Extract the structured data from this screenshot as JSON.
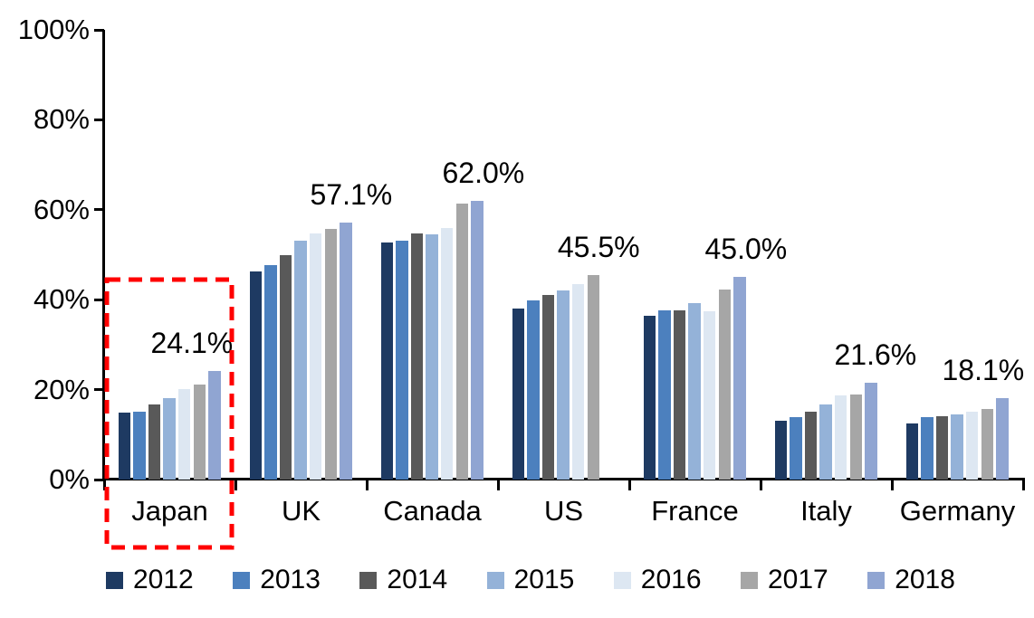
{
  "chart_data": {
    "type": "bar",
    "title": "",
    "xlabel": "",
    "ylabel": "",
    "ylim": [
      0,
      100
    ],
    "yticks": [
      "0%",
      "20%",
      "40%",
      "60%",
      "80%",
      "100%"
    ],
    "ytick_values": [
      0,
      20,
      40,
      60,
      80,
      100
    ],
    "grid": "off",
    "legend_position": "bottom",
    "categories": [
      "Japan",
      "UK",
      "Canada",
      "US",
      "France",
      "Italy",
      "Germany"
    ],
    "series": [
      {
        "name": "2012",
        "color": "#1E3A62",
        "values": [
          14.9,
          46.2,
          52.7,
          38.0,
          36.5,
          13.0,
          12.4
        ]
      },
      {
        "name": "2013",
        "color": "#4C80BE",
        "values": [
          15.1,
          47.7,
          53.2,
          39.8,
          37.7,
          13.9,
          13.8
        ]
      },
      {
        "name": "2014",
        "color": "#595959",
        "values": [
          16.6,
          49.9,
          54.7,
          41.0,
          37.6,
          15.0,
          14.1
        ]
      },
      {
        "name": "2015",
        "color": "#94B2D8",
        "values": [
          18.1,
          53.2,
          54.5,
          42.0,
          39.3,
          16.7,
          14.5
        ]
      },
      {
        "name": "2016",
        "color": "#DDE7F2",
        "values": [
          20.2,
          54.8,
          56.0,
          43.4,
          37.5,
          18.7,
          15.1
        ]
      },
      {
        "name": "2017",
        "color": "#A6A6A6",
        "values": [
          21.1,
          55.8,
          61.4,
          45.5,
          42.3,
          18.9,
          15.6
        ]
      },
      {
        "name": "2018",
        "color": "#90A5D2",
        "values": [
          24.1,
          57.1,
          62.0,
          null,
          45.0,
          21.6,
          18.1
        ]
      }
    ],
    "data_labels": [
      "24.1%",
      "57.1%",
      "62.0%",
      "45.5%",
      "45.0%",
      "21.6%",
      "18.1%"
    ],
    "annotations": {
      "highlight": {
        "target_category": "Japan",
        "shape": "dashed-rectangle",
        "color": "#FF0000"
      }
    },
    "notes": "US series has no 2018 bar; its data label 45.5% sits above the 2017 bar."
  }
}
